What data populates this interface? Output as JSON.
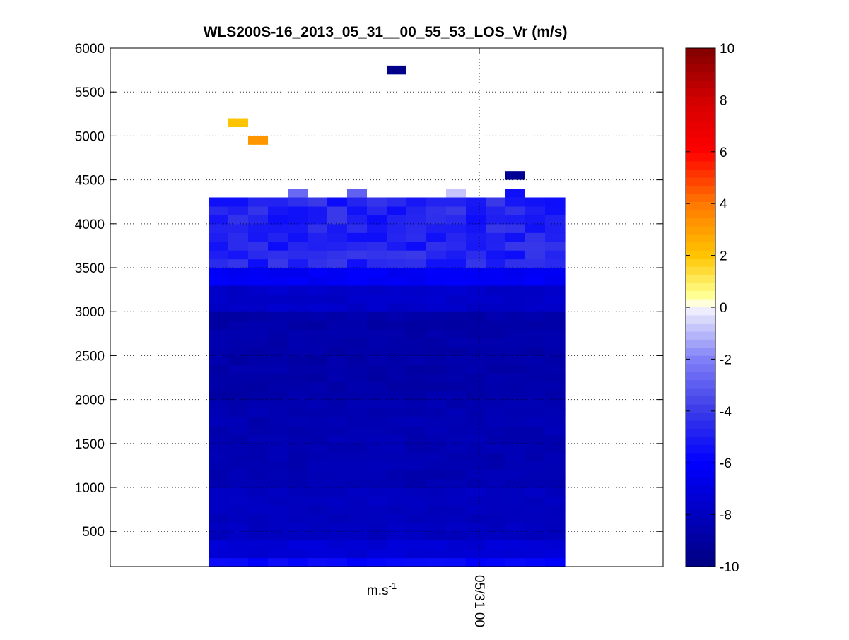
{
  "chart_data": {
    "type": "heatmap",
    "title": "WLS200S-16_2013_05_31__00_55_53_LOS_Vr (m/s)",
    "xlabel": "m.s-1",
    "xlabel_base": "m.s",
    "xlabel_sup": "-1",
    "ylabel": "",
    "ylim": [
      100,
      6000
    ],
    "yticks": [
      500,
      1000,
      1500,
      2000,
      2500,
      3000,
      3500,
      4000,
      4500,
      5000,
      5500,
      6000
    ],
    "xticks": [
      {
        "label": "05/31 00",
        "rotation": "vertical"
      }
    ],
    "grid": true,
    "colorbar": {
      "clim": [
        -10,
        10
      ],
      "ticks": [
        -10,
        -8,
        -6,
        -4,
        -2,
        0,
        2,
        4,
        6,
        8,
        10
      ],
      "placement": "right"
    },
    "profiles": {
      "count": 18,
      "range_gate_m": 100,
      "lowest_gate_m": 100,
      "highest_gate_m": 4300
    },
    "scattered_cells": [
      {
        "profile": 1,
        "altitude": 5150,
        "value": 2.0
      },
      {
        "profile": 2,
        "altitude": 4950,
        "value": 3.2
      },
      {
        "profile": 9,
        "altitude": 5750,
        "value": -9.7
      },
      {
        "profile": 15,
        "altitude": 4550,
        "value": -9.4
      },
      {
        "profile": 15,
        "altitude": 4350,
        "value": -5.5
      },
      {
        "profile": 4,
        "altitude": 4350,
        "value": -2.7
      },
      {
        "profile": 7,
        "altitude": 4350,
        "value": -2.9
      },
      {
        "profile": 12,
        "altitude": 4350,
        "value": -0.8
      }
    ],
    "value_profile_by_altitude": [
      {
        "altitude_min": 100,
        "altitude_max": 200,
        "value": -5.8
      },
      {
        "altitude_min": 200,
        "altitude_max": 400,
        "value": -7.3
      },
      {
        "altitude_min": 400,
        "altitude_max": 1000,
        "value": -8.0
      },
      {
        "altitude_min": 1000,
        "altitude_max": 2000,
        "value": -8.4
      },
      {
        "altitude_min": 2000,
        "altitude_max": 3000,
        "value": -8.7
      },
      {
        "altitude_min": 3000,
        "altitude_max": 3300,
        "value": -7.7
      },
      {
        "altitude_min": 3300,
        "altitude_max": 3500,
        "value": -6.3
      },
      {
        "altitude_min": 3500,
        "altitude_max": 4300,
        "value": -4.8
      }
    ]
  }
}
